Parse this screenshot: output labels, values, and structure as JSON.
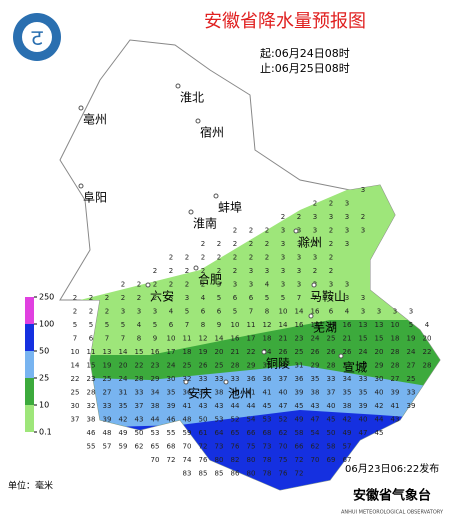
{
  "header": {
    "title": "安徽省降水量预报图",
    "start": "起:06月24日08时",
    "end": "止:06月25日08时"
  },
  "cities": [
    {
      "label": "淮北"
    },
    {
      "label": "亳州"
    },
    {
      "label": "宿州"
    },
    {
      "label": "阜阳"
    },
    {
      "label": "蚌埠"
    },
    {
      "label": "淮南"
    },
    {
      "label": "滁州"
    },
    {
      "label": "六安"
    },
    {
      "label": "合肥"
    },
    {
      "label": "马鞍山"
    },
    {
      "label": "芜湖"
    },
    {
      "label": "铜陵"
    },
    {
      "label": "宣城"
    },
    {
      "label": "安庆"
    },
    {
      "label": "池州"
    }
  ],
  "legend": {
    "levels": [
      250,
      100,
      50,
      25,
      10,
      0.1
    ],
    "colors": [
      "#e040e0",
      "#1530e0",
      "#78b4f0",
      "#3caa3c",
      "#9ee67a"
    ],
    "unit": "单位：毫米"
  },
  "footer": {
    "issued": "06月23日06:22发布",
    "agency": "安徽省气象台",
    "agency_en": "ANHUI METEOROLOGICAL OBSERVATORY"
  },
  "grid": {
    "rows": [
      [
        null,
        null,
        null,
        null,
        null,
        null,
        null,
        null,
        null,
        null,
        null,
        null,
        null,
        null,
        null,
        null,
        null,
        null,
        3,
        null,
        null,
        null,
        null
      ],
      [
        null,
        null,
        null,
        null,
        null,
        null,
        null,
        null,
        null,
        null,
        null,
        null,
        null,
        null,
        null,
        2,
        2,
        3,
        null,
        null,
        null,
        null,
        null
      ],
      [
        null,
        null,
        null,
        null,
        null,
        null,
        null,
        null,
        null,
        null,
        null,
        null,
        null,
        2,
        2,
        3,
        3,
        3,
        2,
        null,
        null,
        null,
        null
      ],
      [
        null,
        null,
        null,
        null,
        null,
        null,
        null,
        null,
        null,
        null,
        2,
        2,
        2,
        3,
        3,
        3,
        2,
        3,
        3,
        null,
        null,
        null,
        null
      ],
      [
        null,
        null,
        null,
        null,
        null,
        null,
        null,
        null,
        2,
        2,
        2,
        2,
        2,
        3,
        3,
        2,
        2,
        3,
        null,
        null,
        null,
        null,
        null
      ],
      [
        null,
        null,
        null,
        null,
        null,
        null,
        2,
        2,
        2,
        2,
        2,
        2,
        2,
        3,
        3,
        3,
        2,
        null,
        null,
        null,
        null,
        null,
        null
      ],
      [
        null,
        null,
        null,
        null,
        null,
        2,
        2,
        2,
        2,
        2,
        2,
        3,
        3,
        3,
        3,
        2,
        2,
        null,
        null,
        null,
        null,
        null,
        null
      ],
      [
        null,
        null,
        null,
        2,
        2,
        2,
        2,
        2,
        2,
        3,
        3,
        3,
        4,
        3,
        3,
        3,
        3,
        3,
        null,
        null,
        null,
        null,
        null
      ],
      [
        2,
        2,
        2,
        2,
        2,
        2,
        3,
        3,
        4,
        5,
        6,
        6,
        5,
        5,
        7,
        7,
        3,
        3,
        3,
        null,
        null,
        null,
        null
      ],
      [
        2,
        2,
        2,
        3,
        3,
        3,
        4,
        5,
        6,
        6,
        5,
        7,
        8,
        10,
        14,
        16,
        6,
        4,
        3,
        3,
        3,
        3,
        null
      ],
      [
        5,
        5,
        5,
        5,
        4,
        5,
        6,
        7,
        8,
        9,
        10,
        11,
        12,
        14,
        16,
        18,
        19,
        16,
        13,
        13,
        10,
        5,
        4
      ],
      [
        7,
        6,
        7,
        7,
        8,
        9,
        10,
        11,
        12,
        14,
        16,
        17,
        18,
        21,
        23,
        24,
        25,
        21,
        15,
        15,
        18,
        19,
        20
      ],
      [
        10,
        11,
        13,
        14,
        15,
        16,
        17,
        18,
        19,
        20,
        21,
        22,
        24,
        26,
        25,
        26,
        26,
        26,
        24,
        20,
        28,
        24,
        22
      ],
      [
        14,
        15,
        19,
        20,
        22,
        23,
        24,
        25,
        26,
        25,
        28,
        29,
        33,
        30,
        31,
        29,
        28,
        27,
        28,
        29,
        28,
        27,
        28
      ],
      [
        22,
        23,
        25,
        24,
        28,
        29,
        30,
        32,
        33,
        33,
        33,
        36,
        36,
        37,
        36,
        35,
        33,
        34,
        33,
        30,
        27,
        25,
        null
      ],
      [
        25,
        28,
        27,
        31,
        33,
        34,
        35,
        36,
        38,
        38,
        38,
        41,
        41,
        40,
        39,
        38,
        37,
        35,
        35,
        40,
        39,
        33,
        null
      ],
      [
        30,
        32,
        33,
        35,
        37,
        38,
        39,
        41,
        43,
        43,
        44,
        44,
        45,
        47,
        45,
        43,
        40,
        38,
        39,
        42,
        41,
        39,
        null
      ],
      [
        37,
        38,
        39,
        42,
        43,
        44,
        46,
        48,
        50,
        53,
        52,
        54,
        53,
        52,
        49,
        47,
        45,
        42,
        40,
        44,
        43,
        null,
        null
      ],
      [
        null,
        46,
        48,
        49,
        50,
        53,
        55,
        59,
        61,
        64,
        65,
        66,
        68,
        62,
        58,
        54,
        50,
        49,
        47,
        45,
        null,
        null,
        null
      ],
      [
        null,
        55,
        57,
        59,
        62,
        65,
        68,
        70,
        72,
        73,
        76,
        75,
        73,
        70,
        66,
        62,
        58,
        57,
        null,
        null,
        null,
        null,
        null
      ],
      [
        null,
        null,
        null,
        null,
        null,
        70,
        72,
        74,
        76,
        80,
        82,
        80,
        78,
        75,
        72,
        70,
        69,
        67,
        null,
        null,
        null,
        null,
        null
      ],
      [
        null,
        null,
        null,
        null,
        null,
        null,
        null,
        83,
        85,
        85,
        86,
        80,
        78,
        76,
        72,
        null,
        null,
        null,
        null,
        null,
        null,
        null,
        null
      ]
    ]
  }
}
